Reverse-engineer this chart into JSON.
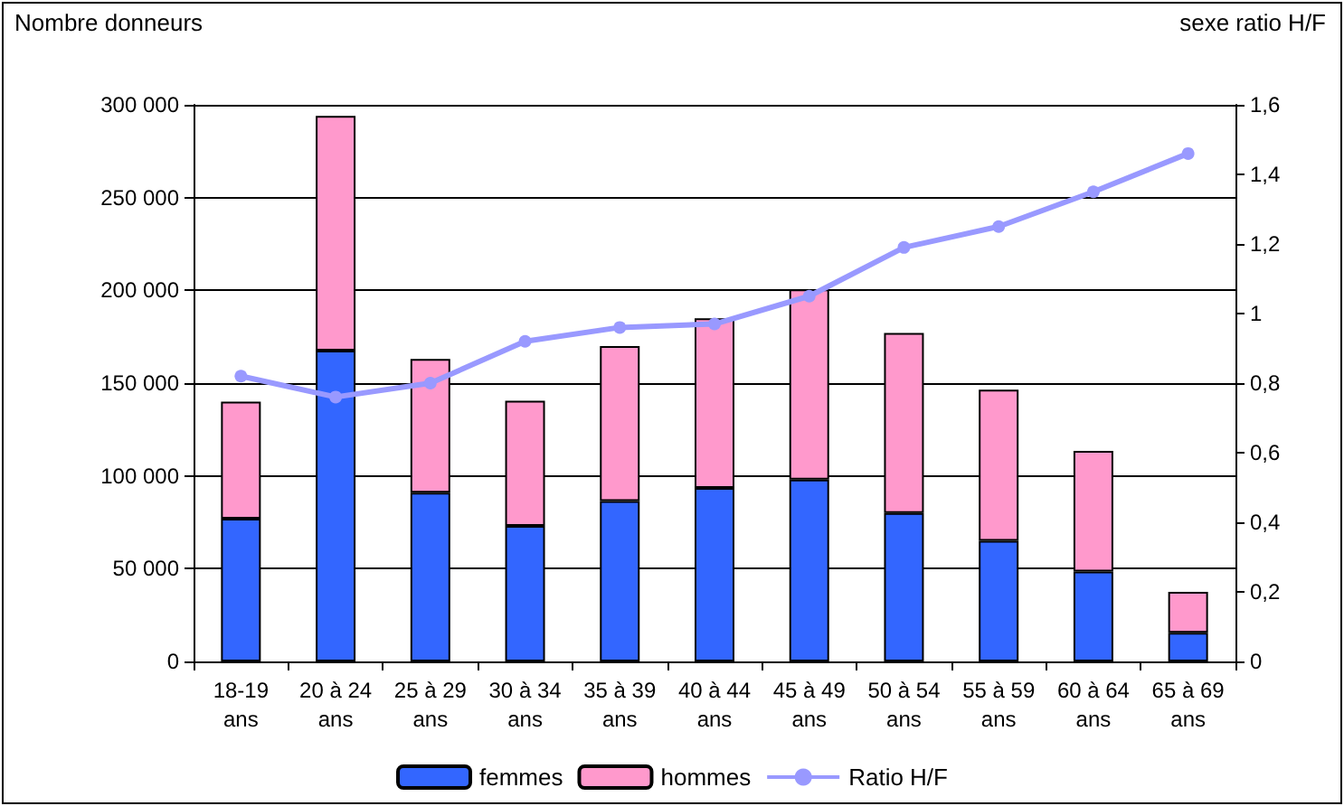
{
  "chart_data": {
    "type": "bar",
    "ylabel": "Nombre donneurs",
    "y2label": "sexe ratio H/F",
    "categories": [
      "18-19\nans",
      "20 à 24\nans",
      "25 à 29\nans",
      "30 à 34\nans",
      "35 à 39\nans",
      "40 à 44\nans",
      "45 à 49\nans",
      "50 à 54\nans",
      "55 à 59\nans",
      "60 à 64\nans",
      "65 à 69\nans"
    ],
    "stacked": true,
    "series": [
      {
        "name": "femmes",
        "color": "#3366ff",
        "values": [
          77000,
          167500,
          91000,
          73000,
          86500,
          93500,
          98000,
          80000,
          65000,
          48500,
          15500
        ]
      },
      {
        "name": "hommes",
        "color": "#ff99cc",
        "values": [
          63000,
          126500,
          72000,
          67500,
          83500,
          91500,
          102500,
          97000,
          81500,
          65000,
          22000
        ]
      },
      {
        "name": "Ratio H/F",
        "type": "line",
        "axis": "y2",
        "color": "#9999ff",
        "values": [
          0.82,
          0.76,
          0.8,
          0.92,
          0.96,
          0.97,
          1.05,
          1.19,
          1.25,
          1.35,
          1.46
        ]
      }
    ],
    "ylim": [
      0,
      300000
    ],
    "yticks": [
      0,
      {
        "value": 50000,
        "label": "50 000"
      },
      {
        "value": 100000,
        "label": "100 000"
      },
      {
        "value": 150000,
        "label": "150 000"
      },
      {
        "value": 200000,
        "label": "200 000"
      },
      {
        "value": 250000,
        "label": "250 000"
      },
      {
        "value": 300000,
        "label": "300 000"
      }
    ],
    "y2lim": [
      0,
      1.6
    ],
    "y2ticks": [
      0,
      {
        "value": 0.2,
        "label": "0,2"
      },
      {
        "value": 0.4,
        "label": "0,4"
      },
      {
        "value": 0.6,
        "label": "0,6"
      },
      {
        "value": 0.8,
        "label": "0,8"
      },
      1,
      {
        "value": 1.2,
        "label": "1,2"
      },
      {
        "value": 1.4,
        "label": "1,4"
      },
      {
        "value": 1.6,
        "label": "1,6"
      }
    ],
    "grid": "y",
    "legend": "bottom",
    "marker": "circle",
    "line_style": "solid"
  }
}
